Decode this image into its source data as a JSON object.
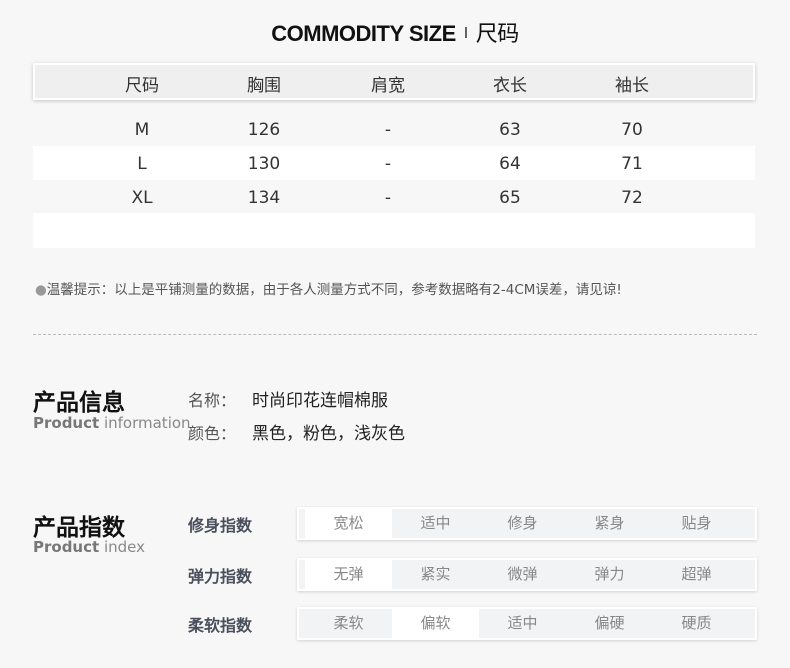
{
  "title": {
    "en": "COMMODITY SIZE",
    "sep": "I",
    "cn": "尺码"
  },
  "size_table": {
    "headers": [
      "尺码",
      "胸围",
      "肩宽",
      "衣长",
      "袖长"
    ],
    "rows": [
      [
        "M",
        "126",
        "-",
        "63",
        "70"
      ],
      [
        "L",
        "130",
        "-",
        "64",
        "71"
      ],
      [
        "XL",
        "134",
        "-",
        "65",
        "72"
      ]
    ]
  },
  "tip": "温馨提示：以上是平铺测量的数据，由于各人测量方式不同，参考数据略有2-4CM误差，请见谅!",
  "product_info": {
    "heading": "产品信息",
    "sub_bold": "Product",
    "sub_rest": "information",
    "name_label": "名称：",
    "name_value": "时尚印花连帽棉服",
    "color_label": "颜色：",
    "color_value": "黑色，粉色，浅灰色"
  },
  "product_index": {
    "heading": "产品指数",
    "sub_bold": "Product",
    "sub_rest": "index",
    "rows": [
      {
        "label": "修身指数",
        "options": [
          "宽松",
          "适中",
          "修身",
          "紧身",
          "贴身"
        ],
        "selected": 0
      },
      {
        "label": "弹力指数",
        "options": [
          "无弹",
          "紧实",
          "微弹",
          "弹力",
          "超弹"
        ],
        "selected": 0
      },
      {
        "label": "柔软指数",
        "options": [
          "柔软",
          "偏软",
          "适中",
          "偏硬",
          "硬质"
        ],
        "selected": 1
      }
    ]
  }
}
